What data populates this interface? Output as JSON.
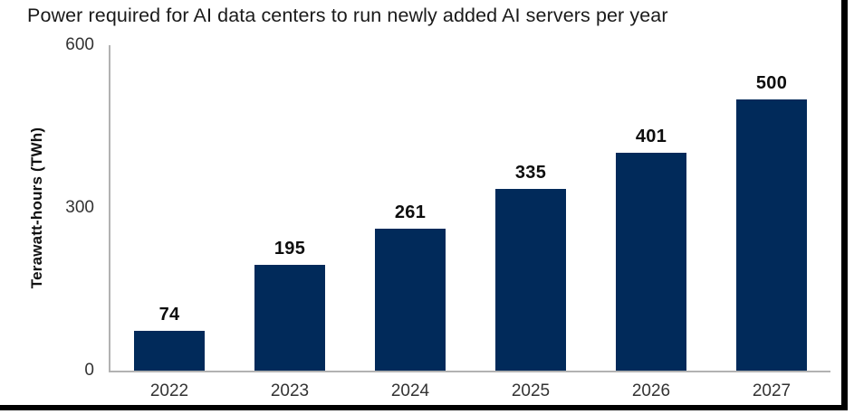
{
  "chart_data": {
    "type": "bar",
    "title": "Power required for AI data centers to run newly added AI servers per year",
    "categories": [
      "2022",
      "2023",
      "2024",
      "2025",
      "2026",
      "2027"
    ],
    "values": [
      74,
      195,
      261,
      335,
      401,
      500
    ],
    "xlabel": "",
    "ylabel": "Terawatt-hours (TWh)",
    "ylim": [
      0,
      600
    ],
    "yticks": [
      0,
      300,
      600
    ],
    "grid": false,
    "legend": null,
    "bar_color": "#012a5a",
    "axis_color": "#b2b2b2",
    "value_label_color": "#0d0d0d",
    "tick_label_color": "#333333",
    "frame_border_color": "#000000"
  }
}
